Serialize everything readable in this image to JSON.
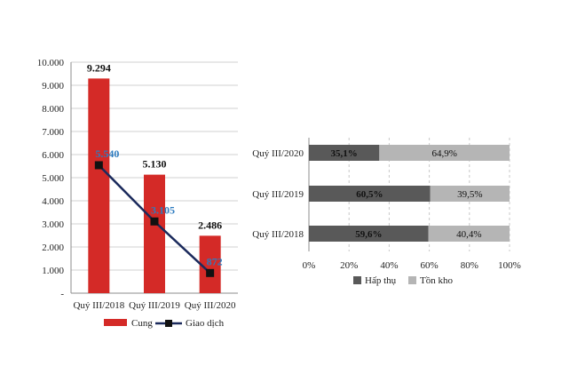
{
  "chart_data": [
    {
      "type": "bar",
      "title": "",
      "xlabel": "",
      "ylabel": "",
      "categories": [
        "Quý III/2018",
        "Quý III/2019",
        "Quý III/2020"
      ],
      "ylim": [
        0,
        10000
      ],
      "yticks": [
        "-",
        "1.000",
        "2.000",
        "3.000",
        "4.000",
        "5.000",
        "6.000",
        "7.000",
        "8.000",
        "9.000",
        "10.000"
      ],
      "grid": true,
      "legend_position": "bottom",
      "series": [
        {
          "name": "Cung",
          "type": "bar",
          "color": "#d42a27",
          "values": [
            9294,
            5130,
            2486
          ],
          "labels": [
            "9.294",
            "5.130",
            "2.486"
          ]
        },
        {
          "name": "Giao dịch",
          "type": "line",
          "color": "#1b2a5c",
          "label_color": "#2e7cc0",
          "values": [
            5540,
            3105,
            872
          ],
          "labels": [
            "5.540",
            "3.105",
            "872"
          ]
        }
      ]
    },
    {
      "type": "bar",
      "orientation": "horizontal",
      "stacked": true,
      "percent": true,
      "title": "",
      "xlabel": "",
      "ylabel": "",
      "categories": [
        "Quý III/2020",
        "Quý III/2019",
        "Quý III/2018"
      ],
      "xlim": [
        0,
        100
      ],
      "xticks": [
        "0%",
        "20%",
        "40%",
        "60%",
        "80%",
        "100%"
      ],
      "grid": true,
      "legend_position": "bottom",
      "series": [
        {
          "name": "Hấp thụ",
          "color": "#595959",
          "values": [
            35.1,
            60.5,
            59.6
          ],
          "labels": [
            "35,1%",
            "60,5%",
            "59,6%"
          ]
        },
        {
          "name": "Tồn kho",
          "color": "#b5b5b5",
          "values": [
            64.9,
            39.5,
            40.4
          ],
          "labels": [
            "64,9%",
            "39,5%",
            "40,4%"
          ]
        }
      ]
    }
  ]
}
